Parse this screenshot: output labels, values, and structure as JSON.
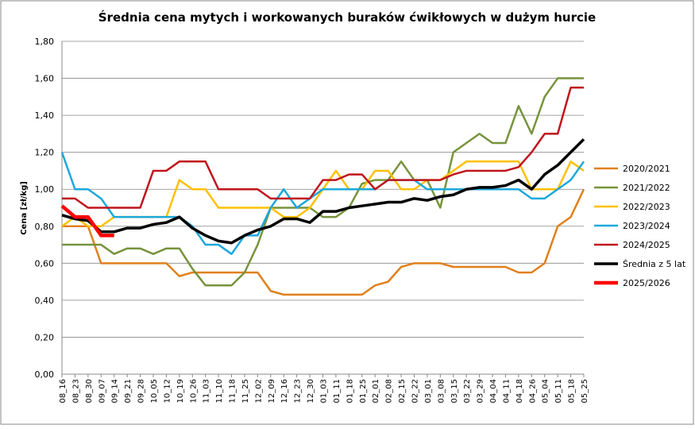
{
  "chart_data": {
    "type": "line",
    "title": "Średnia cena mytych i workowanych buraków ćwikłowych w dużym hurcie",
    "y_label": "Cena [zł/kg]",
    "categories": [
      "08_16",
      "08_23",
      "08_30",
      "09_07",
      "09_14",
      "09_21",
      "09_28",
      "10_05",
      "10_12",
      "10_19",
      "10_26",
      "11_03",
      "11_10",
      "11_18",
      "11_25",
      "12_02",
      "12_09",
      "12_16",
      "12_23",
      "12_30",
      "01_03",
      "01_11",
      "01_18",
      "01_25",
      "02_01",
      "02_08",
      "02_15",
      "02_22",
      "03_01",
      "03_08",
      "03_15",
      "03_22",
      "03_29",
      "04_04",
      "04_11",
      "04_18",
      "04_26",
      "05_04",
      "05_11",
      "05_18",
      "05_25"
    ],
    "ylim": [
      0,
      1.8
    ],
    "yticks": [
      {
        "value": 0,
        "label": "0,00"
      },
      {
        "value": 0.2,
        "label": "0,20"
      },
      {
        "value": 0.4,
        "label": "0,40"
      },
      {
        "value": 0.6,
        "label": "0,60"
      },
      {
        "value": 0.8,
        "label": "0,80"
      },
      {
        "value": 1,
        "label": "1,00"
      },
      {
        "value": 1.2,
        "label": "1,20"
      },
      {
        "value": 1.4,
        "label": "1,40"
      },
      {
        "value": 1.6,
        "label": "1,60"
      },
      {
        "value": 1.8,
        "label": "1,80"
      }
    ],
    "grid": true,
    "legend": "right",
    "series": [
      {
        "name": "2020/2021",
        "color": "#e0801c",
        "width": 2.5,
        "values": [
          0.8,
          0.8,
          0.8,
          0.6,
          0.6,
          0.6,
          0.6,
          0.6,
          0.6,
          0.53,
          0.55,
          0.55,
          0.55,
          0.55,
          0.55,
          0.55,
          0.45,
          0.43,
          0.43,
          0.43,
          0.43,
          0.43,
          0.43,
          0.43,
          0.48,
          0.5,
          0.58,
          0.6,
          0.6,
          0.6,
          0.58,
          0.58,
          0.58,
          0.58,
          0.58,
          0.55,
          0.55,
          0.6,
          0.8,
          0.85,
          1.0
        ]
      },
      {
        "name": "2021/2022",
        "color": "#77933c",
        "width": 2.5,
        "values": [
          0.7,
          0.7,
          0.7,
          0.7,
          0.65,
          0.68,
          0.68,
          0.65,
          0.68,
          0.68,
          0.57,
          0.48,
          0.48,
          0.48,
          0.55,
          0.7,
          0.9,
          0.9,
          0.9,
          0.9,
          0.85,
          0.85,
          0.9,
          1.03,
          1.05,
          1.05,
          1.15,
          1.05,
          1.05,
          0.9,
          1.2,
          1.25,
          1.3,
          1.25,
          1.25,
          1.45,
          1.3,
          1.5,
          1.6,
          1.6,
          1.6
        ]
      },
      {
        "name": "2022/2023",
        "color": "#ffc000",
        "width": 2.5,
        "values": [
          0.8,
          0.85,
          0.8,
          0.8,
          0.85,
          0.85,
          0.85,
          0.85,
          0.85,
          1.05,
          1.0,
          1.0,
          0.9,
          0.9,
          0.9,
          0.9,
          0.9,
          0.85,
          0.85,
          0.9,
          1.0,
          1.1,
          1.0,
          1.0,
          1.1,
          1.1,
          1.0,
          1.0,
          1.05,
          1.05,
          1.1,
          1.15,
          1.15,
          1.15,
          1.15,
          1.15,
          1.0,
          1.0,
          1.0,
          1.15,
          1.1
        ]
      },
      {
        "name": "2023/2024",
        "color": "#1ca8dc",
        "width": 2.5,
        "values": [
          1.2,
          1.0,
          1.0,
          0.95,
          0.85,
          0.85,
          0.85,
          0.85,
          0.85,
          0.85,
          0.8,
          0.7,
          0.7,
          0.65,
          0.75,
          0.75,
          0.9,
          1.0,
          0.9,
          0.95,
          1.0,
          1.0,
          1.0,
          1.0,
          1.0,
          1.05,
          1.05,
          1.05,
          1.0,
          1.0,
          1.0,
          1.0,
          1.0,
          1.0,
          1.0,
          1.0,
          0.95,
          0.95,
          1.0,
          1.05,
          1.15
        ]
      },
      {
        "name": "2024/2025",
        "color": "#c0141c",
        "width": 2.5,
        "values": [
          0.95,
          0.95,
          0.9,
          0.9,
          0.9,
          0.9,
          0.9,
          1.1,
          1.1,
          1.15,
          1.15,
          1.15,
          1.0,
          1.0,
          1.0,
          1.0,
          0.95,
          0.95,
          0.95,
          0.95,
          1.05,
          1.05,
          1.08,
          1.08,
          1.0,
          1.05,
          1.05,
          1.05,
          1.05,
          1.05,
          1.08,
          1.1,
          1.1,
          1.1,
          1.1,
          1.12,
          1.2,
          1.3,
          1.3,
          1.55,
          1.55
        ]
      },
      {
        "name": "Średnia z 5 lat",
        "color": "#000000",
        "width": 3.5,
        "values": [
          0.86,
          0.84,
          0.83,
          0.77,
          0.77,
          0.79,
          0.79,
          0.81,
          0.82,
          0.85,
          0.79,
          0.75,
          0.72,
          0.71,
          0.75,
          0.78,
          0.8,
          0.84,
          0.84,
          0.82,
          0.88,
          0.88,
          0.9,
          0.91,
          0.92,
          0.93,
          0.93,
          0.95,
          0.94,
          0.96,
          0.97,
          1.0,
          1.01,
          1.01,
          1.02,
          1.05,
          1.0,
          1.08,
          1.13,
          1.2,
          1.27
        ]
      },
      {
        "name": "2025/2026",
        "color": "#ff0000",
        "width": 4.5,
        "values": [
          0.91,
          0.85,
          0.85,
          0.75,
          0.75,
          null,
          null,
          null,
          null,
          null,
          null,
          null,
          null,
          null,
          null,
          null,
          null,
          null,
          null,
          null,
          null,
          null,
          null,
          null,
          null,
          null,
          null,
          null,
          null,
          null,
          null,
          null,
          null,
          null,
          null,
          null,
          null,
          null,
          null,
          null,
          null
        ]
      }
    ]
  }
}
